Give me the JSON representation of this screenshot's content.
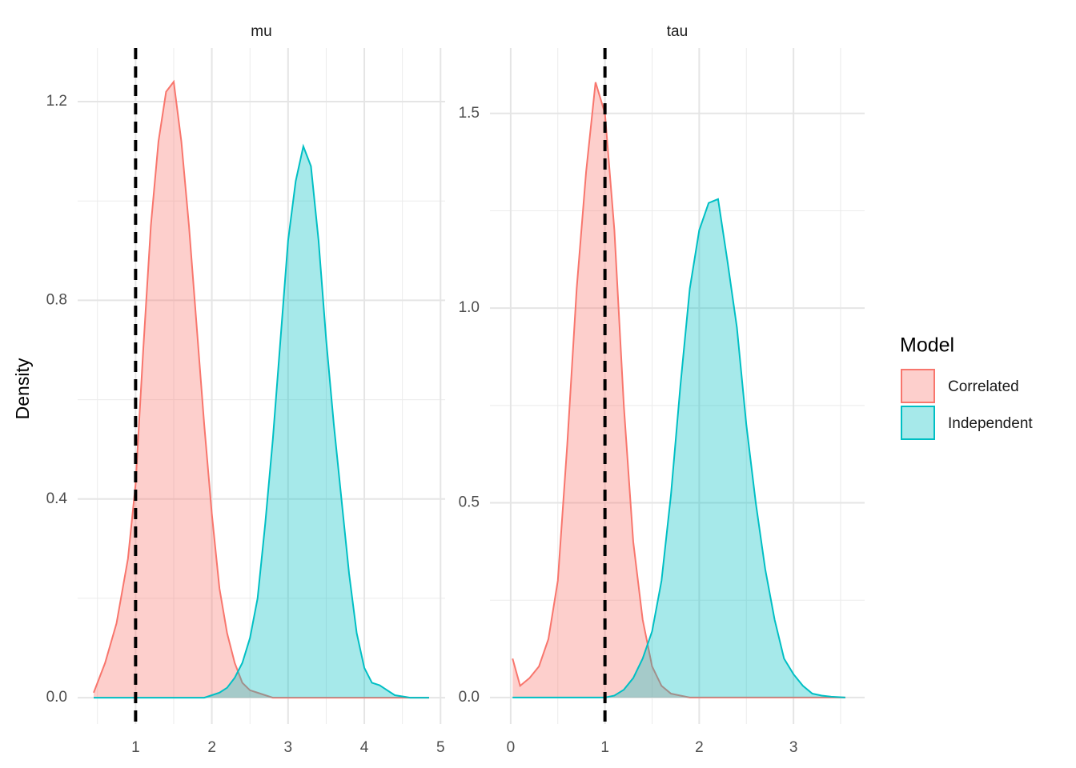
{
  "chart_data": [
    {
      "type": "area",
      "title": "mu",
      "ylabel": "Density",
      "vline": 1,
      "grid": true,
      "xlim": [
        0.24,
        5.06
      ],
      "xticks": [
        1,
        2,
        3,
        4,
        5
      ],
      "ylim": [
        -0.053,
        1.308
      ],
      "yticks": [
        {
          "value": 0,
          "label": "0.0"
        },
        {
          "value": 0.4,
          "label": "0.4"
        },
        {
          "value": 0.8,
          "label": "0.8"
        },
        {
          "value": 1.2,
          "label": "1.2"
        }
      ],
      "x": [
        0.45,
        0.6,
        0.75,
        0.9,
        1.0,
        1.1,
        1.2,
        1.3,
        1.4,
        1.5,
        1.6,
        1.7,
        1.8,
        1.9,
        2.0,
        2.1,
        2.2,
        2.3,
        2.4,
        2.5,
        2.6,
        2.7,
        2.8,
        2.9,
        3.0,
        3.1,
        3.2,
        3.3,
        3.4,
        3.5,
        3.6,
        3.7,
        3.8,
        3.9,
        4.0,
        4.1,
        4.2,
        4.3,
        4.4,
        4.6,
        4.85
      ],
      "series": [
        {
          "color": "#F8766D",
          "values": [
            0.01,
            0.07,
            0.15,
            0.28,
            0.43,
            0.7,
            0.95,
            1.12,
            1.22,
            1.24,
            1.12,
            0.95,
            0.75,
            0.55,
            0.37,
            0.22,
            0.13,
            0.07,
            0.03,
            0.015,
            0.01,
            0.005,
            0,
            0,
            0,
            0,
            0,
            0,
            0,
            0,
            0,
            0,
            0,
            0,
            0,
            0,
            0,
            0,
            0,
            0,
            0
          ]
        },
        {
          "color": "#00BFC4",
          "values": [
            0,
            0,
            0,
            0,
            0,
            0,
            0,
            0,
            0,
            0,
            0,
            0,
            0,
            0,
            0.005,
            0.01,
            0.02,
            0.04,
            0.07,
            0.12,
            0.2,
            0.35,
            0.52,
            0.72,
            0.92,
            1.04,
            1.11,
            1.07,
            0.92,
            0.72,
            0.55,
            0.4,
            0.25,
            0.13,
            0.06,
            0.03,
            0.025,
            0.015,
            0.005,
            0,
            0
          ]
        }
      ]
    },
    {
      "type": "area",
      "title": "tau",
      "legend_title": "Model",
      "vline": 1,
      "grid": true,
      "xlim": [
        -0.22,
        3.755
      ],
      "xticks": [
        0,
        1,
        2,
        3
      ],
      "ylim": [
        -0.068,
        1.668
      ],
      "yticks": [
        {
          "value": 0,
          "label": "0.0"
        },
        {
          "value": 0.5,
          "label": "0.5"
        },
        {
          "value": 1,
          "label": "1.0"
        },
        {
          "value": 1.5,
          "label": "1.5"
        }
      ],
      "x": [
        0.02,
        0.1,
        0.2,
        0.3,
        0.4,
        0.5,
        0.6,
        0.7,
        0.8,
        0.9,
        1.0,
        1.1,
        1.2,
        1.3,
        1.4,
        1.5,
        1.6,
        1.7,
        1.8,
        1.9,
        2.0,
        2.1,
        2.2,
        2.3,
        2.4,
        2.5,
        2.6,
        2.7,
        2.8,
        2.9,
        3.0,
        3.1,
        3.2,
        3.3,
        3.4,
        3.55
      ],
      "series": [
        {
          "name": "Correlated",
          "color": "#F8766D",
          "values": [
            0.1,
            0.03,
            0.05,
            0.08,
            0.15,
            0.3,
            0.65,
            1.05,
            1.35,
            1.58,
            1.5,
            1.2,
            0.75,
            0.4,
            0.2,
            0.08,
            0.03,
            0.01,
            0.005,
            0,
            0,
            0,
            0,
            0,
            0,
            0,
            0,
            0,
            0,
            0,
            0,
            0,
            0,
            0,
            0,
            0
          ]
        },
        {
          "name": "Independent",
          "color": "#00BFC4",
          "values": [
            0,
            0,
            0,
            0,
            0,
            0,
            0,
            0,
            0,
            0,
            0,
            0.005,
            0.02,
            0.05,
            0.1,
            0.17,
            0.3,
            0.52,
            0.8,
            1.05,
            1.2,
            1.27,
            1.28,
            1.12,
            0.95,
            0.7,
            0.5,
            0.33,
            0.2,
            0.1,
            0.06,
            0.03,
            0.01,
            0.005,
            0.002,
            0
          ]
        }
      ]
    }
  ]
}
